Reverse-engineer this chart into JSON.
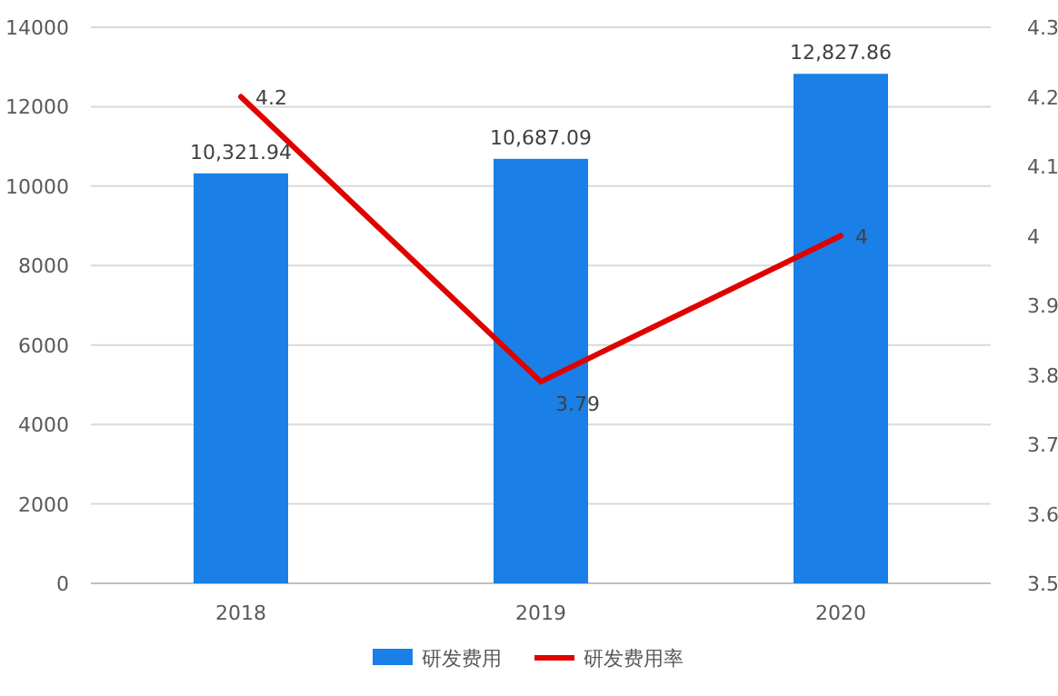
{
  "chart_data": {
    "type": "bar",
    "categories": [
      "2018",
      "2019",
      "2020"
    ],
    "series": [
      {
        "name": "研发费用",
        "color": "#1a7fe6",
        "values": [
          10321.94,
          10687.09,
          12827.86
        ],
        "value_labels": [
          "10,321.94",
          "10,687.09",
          "12,827.86"
        ]
      },
      {
        "name": "研发费用率",
        "type": "line",
        "axis": "y2",
        "color": "#e00000",
        "values": [
          4.2,
          3.79,
          4
        ],
        "value_labels": [
          "4.2",
          "3.79",
          "4"
        ]
      }
    ],
    "ylim": [
      0,
      14000
    ],
    "yticks": [
      0,
      2000,
      4000,
      6000,
      8000,
      10000,
      12000,
      14000
    ],
    "y2lim": [
      3.5,
      4.3
    ],
    "y2ticks": [
      3.5,
      3.6,
      3.7,
      3.8,
      3.9,
      4,
      4.1,
      4.2,
      4.3
    ],
    "grid": "y",
    "legend": "bottom",
    "marker": "none",
    "line_style": "solid"
  }
}
